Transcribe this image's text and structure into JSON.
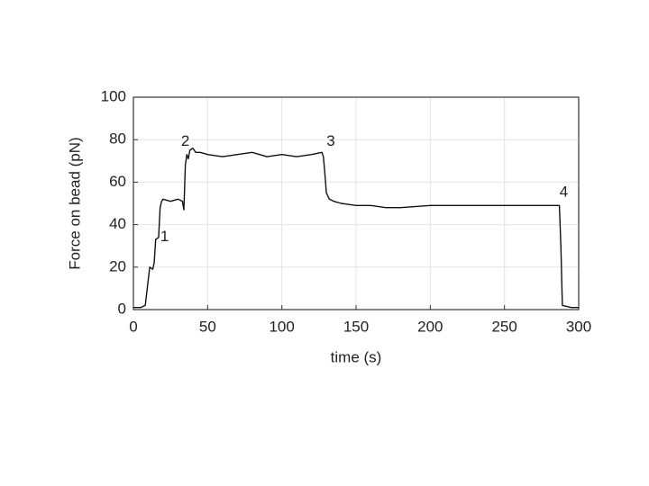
{
  "chart_data": {
    "type": "line",
    "xlabel": "time (s)",
    "ylabel": "Force on bead (pN)",
    "x": [
      0,
      5,
      8,
      9,
      10,
      11,
      13,
      14,
      15,
      17,
      18,
      19,
      20,
      25,
      30,
      33,
      34,
      35,
      36,
      37,
      38,
      40,
      42,
      45,
      50,
      60,
      70,
      80,
      90,
      100,
      110,
      120,
      127,
      128,
      129,
      130,
      132,
      135,
      140,
      150,
      160,
      170,
      180,
      200,
      220,
      240,
      260,
      280,
      287,
      288,
      289,
      295,
      300
    ],
    "values": [
      1,
      1,
      2,
      8,
      14,
      20,
      19,
      22,
      33,
      34,
      48,
      51,
      52,
      51,
      52,
      51,
      47,
      68,
      73,
      71,
      75,
      76,
      74,
      74,
      73,
      72,
      73,
      74,
      72,
      73,
      72,
      73,
      74,
      72,
      64,
      55,
      52,
      51,
      50,
      49,
      49,
      48,
      48,
      49,
      49,
      49,
      49,
      49,
      49,
      30,
      2,
      1,
      1
    ],
    "color": "#111111",
    "xlim": [
      0,
      300
    ],
    "ylim": [
      0,
      100
    ],
    "xticks": [
      0,
      50,
      100,
      150,
      200,
      250,
      300
    ],
    "yticks": [
      0,
      20,
      40,
      60,
      80,
      100
    ],
    "grid": true,
    "annotations": [
      {
        "text": "1",
        "x": 21,
        "y": 34
      },
      {
        "text": "2",
        "x": 35,
        "y": 79
      },
      {
        "text": "3",
        "x": 133,
        "y": 79
      },
      {
        "text": "4",
        "x": 290,
        "y": 55
      }
    ]
  }
}
